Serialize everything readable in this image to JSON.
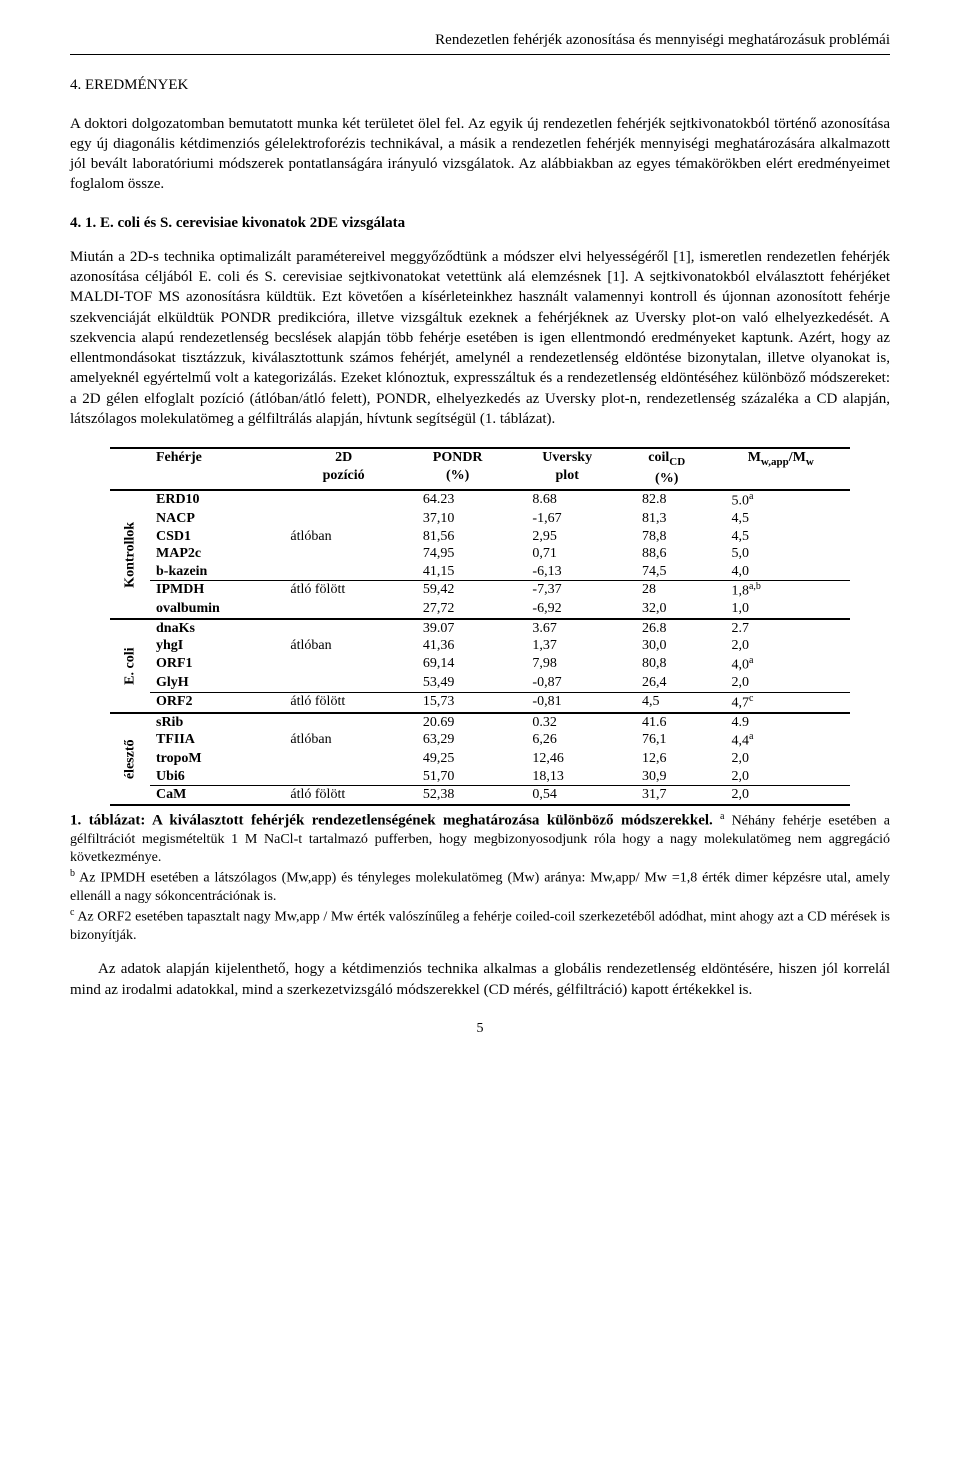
{
  "running_head": "Rendezetlen fehérjék azonosítása és mennyiségi meghatározásuk problémái",
  "section_title": "4. EREDMÉNYEK",
  "intro_para": "A doktori dolgozatomban bemutatott munka két területet ölel fel. Az egyik új rendezetlen fehérjék sejtkivonatokból történő azonosítása egy új diagonális kétdimenziós gélelektroforézis technikával, a másik a rendezetlen fehérjék mennyiségi meghatározására alkalmazott jól bevált laboratóriumi módszerek pontatlanságára irányuló vizsgálatok. Az alábbiakban az egyes témakörökben elért eredményeimet foglalom össze.",
  "subhead": "4. 1. E. coli és S. cerevisiae kivonatok 2DE vizsgálata",
  "body_para": "Miután a 2D-s technika optimalizált paramétereivel meggyőződtünk a módszer elvi helyességéről [1], ismeretlen rendezetlen fehérjék azonosítása céljából E. coli és S. cerevisiae sejtkivonatokat vetettünk alá elemzésnek [1]. A sejtkivonatokból elválasztott fehérjéket MALDI-TOF MS azonosításra küldtük. Ezt követően a kísérleteinkhez használt valamennyi kontroll és újonnan azonosított fehérje szekvenciáját elküldtük PONDR predikcióra, illetve vizsgáltuk ezeknek a fehérjéknek az Uversky plot-on való elhelyezkedését. A szekvencia alapú rendezetlenség becslések alapján több fehérje esetében is igen ellentmondó eredményeket kaptunk. Azért, hogy az ellentmondásokat tisztázzuk, kiválasztottunk számos fehérjét, amelynél a rendezetlenség eldöntése bizonytalan, illetve olyanokat is, amelyeknél egyértelmű volt a kategorizálás. Ezeket klónoztuk, expresszáltuk és a rendezetlenség eldöntéséhez különböző módszereket: a 2D gélen elfoglalt pozíció (átlóban/átló felett), PONDR, elhelyezkedés az Uversky plot-n, rendezetlenség százaléka a CD alapján, látszólagos molekulatömeg a gélfiltrálás alapján, hívtunk segítségül (1. táblázat).",
  "table": {
    "headers": {
      "protein": "Fehérje",
      "pos2d": "2D pozíció",
      "pondr": "PONDR (%)",
      "uversky": "Uversky plot",
      "coil": "coilCD (%)",
      "mw": "Mw,app/Mw"
    },
    "groups": [
      {
        "label": "Kontrollok",
        "rows": [
          {
            "p": "ERD10",
            "pos": "",
            "pondr": "64.23",
            "uv": "8.68",
            "coil": "82.8",
            "mw": "5.0",
            "sup": "a"
          },
          {
            "p": "NACP",
            "pos": "",
            "pondr": "37,10",
            "uv": "-1,67",
            "coil": "81,3",
            "mw": "4,5",
            "sup": ""
          },
          {
            "p": "CSD1",
            "pos": "átlóban",
            "pondr": "81,56",
            "uv": "2,95",
            "coil": "78,8",
            "mw": "4,5",
            "sup": ""
          },
          {
            "p": "MAP2c",
            "pos": "",
            "pondr": "74,95",
            "uv": "0,71",
            "coil": "88,6",
            "mw": "5,0",
            "sup": ""
          },
          {
            "p": "b-kazein",
            "pos": "",
            "pondr": "41,15",
            "uv": "-6,13",
            "coil": "74,5",
            "mw": "4,0",
            "sup": "",
            "thin": true
          },
          {
            "p": "IPMDH",
            "pos": "átló fölött",
            "pondr": "59,42",
            "uv": "-7,37",
            "coil": "28",
            "mw": "1,8",
            "sup": "a,b"
          },
          {
            "p": "ovalbumin",
            "pos": "",
            "pondr": "27,72",
            "uv": "-6,92",
            "coil": "32,0",
            "mw": "1,0",
            "sup": ""
          }
        ]
      },
      {
        "label": "E. coli",
        "rows": [
          {
            "p": "dnaKs",
            "pos": "",
            "pondr": "39.07",
            "uv": "3.67",
            "coil": "26.8",
            "mw": "2.7",
            "sup": ""
          },
          {
            "p": "yhgI",
            "pos": "átlóban",
            "pondr": "41,36",
            "uv": "1,37",
            "coil": "30,0",
            "mw": "2,0",
            "sup": ""
          },
          {
            "p": "ORF1",
            "pos": "",
            "pondr": "69,14",
            "uv": "7,98",
            "coil": "80,8",
            "mw": "4,0",
            "sup": "a"
          },
          {
            "p": "GlyH",
            "pos": "",
            "pondr": "53,49",
            "uv": "-0,87",
            "coil": "26,4",
            "mw": "2,0",
            "sup": "",
            "thin": true
          },
          {
            "p": "ORF2",
            "pos": "átló fölött",
            "pondr": "15,73",
            "uv": "-0,81",
            "coil": "4,5",
            "mw": "4,7",
            "sup": "c"
          }
        ]
      },
      {
        "label": "élesztő",
        "rows": [
          {
            "p": "sRib",
            "pos": "",
            "pondr": "20.69",
            "uv": "0.32",
            "coil": "41.6",
            "mw": "4.9",
            "sup": ""
          },
          {
            "p": "TFIIA",
            "pos": "átlóban",
            "pondr": "63,29",
            "uv": "6,26",
            "coil": "76,1",
            "mw": "4,4",
            "sup": "a"
          },
          {
            "p": "tropoM",
            "pos": "",
            "pondr": "49,25",
            "uv": "12,46",
            "coil": "12,6",
            "mw": "2,0",
            "sup": ""
          },
          {
            "p": "Ubi6",
            "pos": "",
            "pondr": "51,70",
            "uv": "18,13",
            "coil": "30,9",
            "mw": "2,0",
            "sup": "",
            "thin": true
          },
          {
            "p": "CaM",
            "pos": "átló fölött",
            "pondr": "52,38",
            "uv": "0,54",
            "coil": "31,7",
            "mw": "2,0",
            "sup": ""
          }
        ]
      }
    ]
  },
  "caption_lead": "1. táblázat: A kiválasztott fehérjék rendezetlenségének meghatározása különböző módszerekkel.",
  "caption_a": " Néhány fehérje esetében a gélfiltrációt megismételtük 1 M NaCl-t tartalmazó pufferben, hogy megbizonyosodjunk róla hogy a nagy molekulatömeg nem aggregáció következménye.",
  "caption_b": " Az IPMDH esetében a látszólagos (Mw,app) és tényleges molekulatömeg (Mw) aránya: Mw,app/ Mw =1,8 érték dimer képzésre utal, amely ellenáll a nagy sókoncentrációnak is.",
  "caption_c": " Az ORF2 esetében tapasztalt nagy Mw,app / Mw érték valószínűleg a fehérje coiled-coil szerkezetéből adódhat, mint ahogy azt a CD mérések is bizonyítják.",
  "closing_para": "Az adatok alapján kijelenthető, hogy a kétdimenziós technika alkalmas a globális rendezetlenség eldöntésére, hiszen jól korrelál mind az irodalmi adatokkal, mind a szerkezetvizsgáló módszerekkel (CD mérés, gélfiltráció) kapott értékekkel is.",
  "page_num": "5"
}
